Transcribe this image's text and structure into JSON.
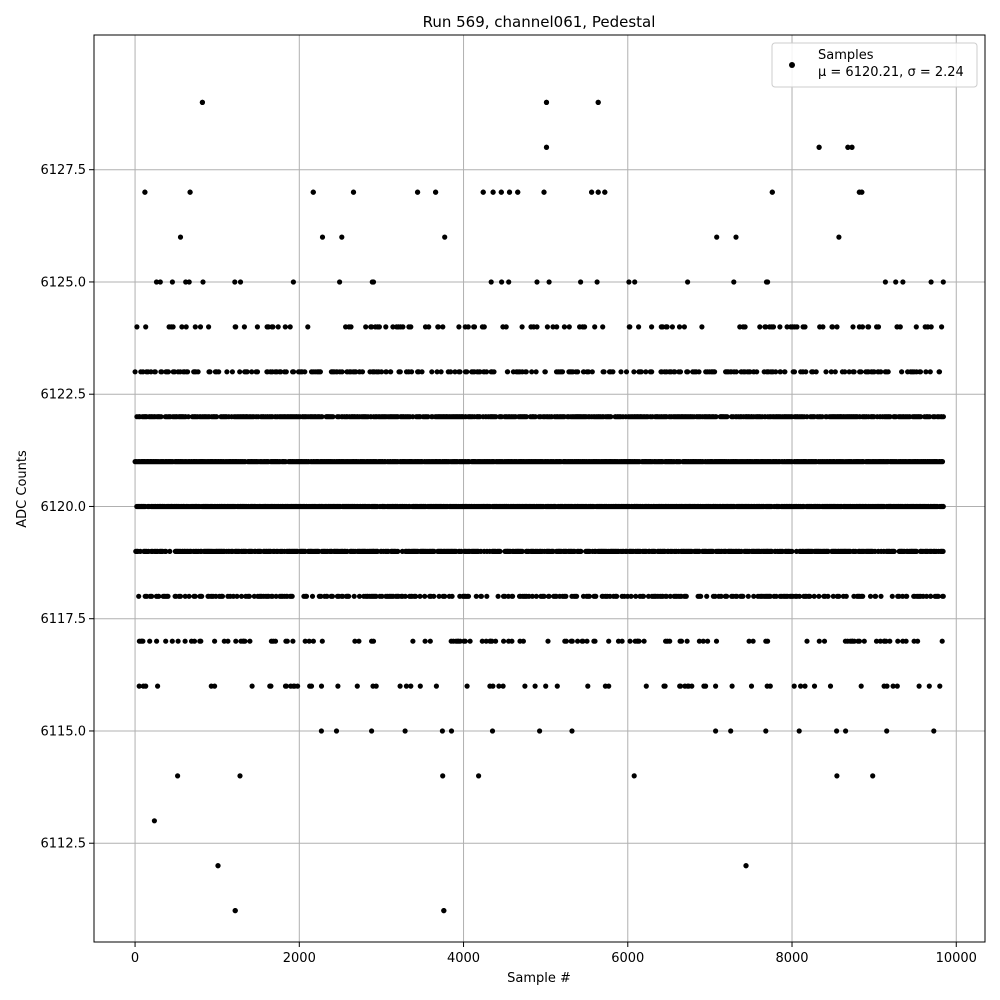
{
  "chart_data": {
    "type": "scatter",
    "title": "Run 569, channel061, Pedestal",
    "xlabel": "Sample #",
    "ylabel": "ADC Counts",
    "xlim": [
      -500,
      10350
    ],
    "ylim": [
      6110.3,
      6130.5
    ],
    "xticks": [
      0,
      2000,
      4000,
      6000,
      8000,
      10000
    ],
    "yticks": [
      6112.5,
      6115.0,
      6117.5,
      6120.0,
      6122.5,
      6125.0,
      6127.5
    ],
    "xtick_labels": [
      "0",
      "2000",
      "4000",
      "6000",
      "8000",
      "10000"
    ],
    "ytick_labels": [
      "6112.5",
      "6115.0",
      "6117.5",
      "6120.0",
      "6122.5",
      "6125.0",
      "6127.5"
    ],
    "grid": true,
    "legend_position": "top-right",
    "series": [
      {
        "name": "Samples",
        "legend_stats": "μ = 6120.21, σ = 2.24",
        "color": "#000000",
        "marker": "circle",
        "n_samples": 9840,
        "value_levels": [
          6111,
          6112,
          6113,
          6114,
          6115,
          6116,
          6117,
          6118,
          6119,
          6120,
          6121,
          6122,
          6123,
          6124,
          6125,
          6126,
          6127,
          6128,
          6129
        ],
        "outlier_points": [
          {
            "x": 820,
            "y": 6129
          },
          {
            "x": 5010,
            "y": 6129
          },
          {
            "x": 5640,
            "y": 6129
          },
          {
            "x": 5010,
            "y": 6128
          },
          {
            "x": 8330,
            "y": 6128
          },
          {
            "x": 8680,
            "y": 6128
          },
          {
            "x": 8730,
            "y": 6128
          },
          {
            "x": 120,
            "y": 6127
          },
          {
            "x": 670,
            "y": 6127
          },
          {
            "x": 2170,
            "y": 6127
          },
          {
            "x": 2660,
            "y": 6127
          },
          {
            "x": 3440,
            "y": 6127
          },
          {
            "x": 3660,
            "y": 6127
          },
          {
            "x": 4240,
            "y": 6127
          },
          {
            "x": 4360,
            "y": 6127
          },
          {
            "x": 4460,
            "y": 6127
          },
          {
            "x": 4560,
            "y": 6127
          },
          {
            "x": 4660,
            "y": 6127
          },
          {
            "x": 4980,
            "y": 6127
          },
          {
            "x": 5560,
            "y": 6127
          },
          {
            "x": 5640,
            "y": 6127
          },
          {
            "x": 5720,
            "y": 6127
          },
          {
            "x": 7760,
            "y": 6127
          },
          {
            "x": 8820,
            "y": 6127
          },
          {
            "x": 8850,
            "y": 6127
          },
          {
            "x": 1010,
            "y": 6112
          },
          {
            "x": 7440,
            "y": 6112
          },
          {
            "x": 1220,
            "y": 6111
          },
          {
            "x": 3760,
            "y": 6111
          }
        ]
      }
    ]
  }
}
